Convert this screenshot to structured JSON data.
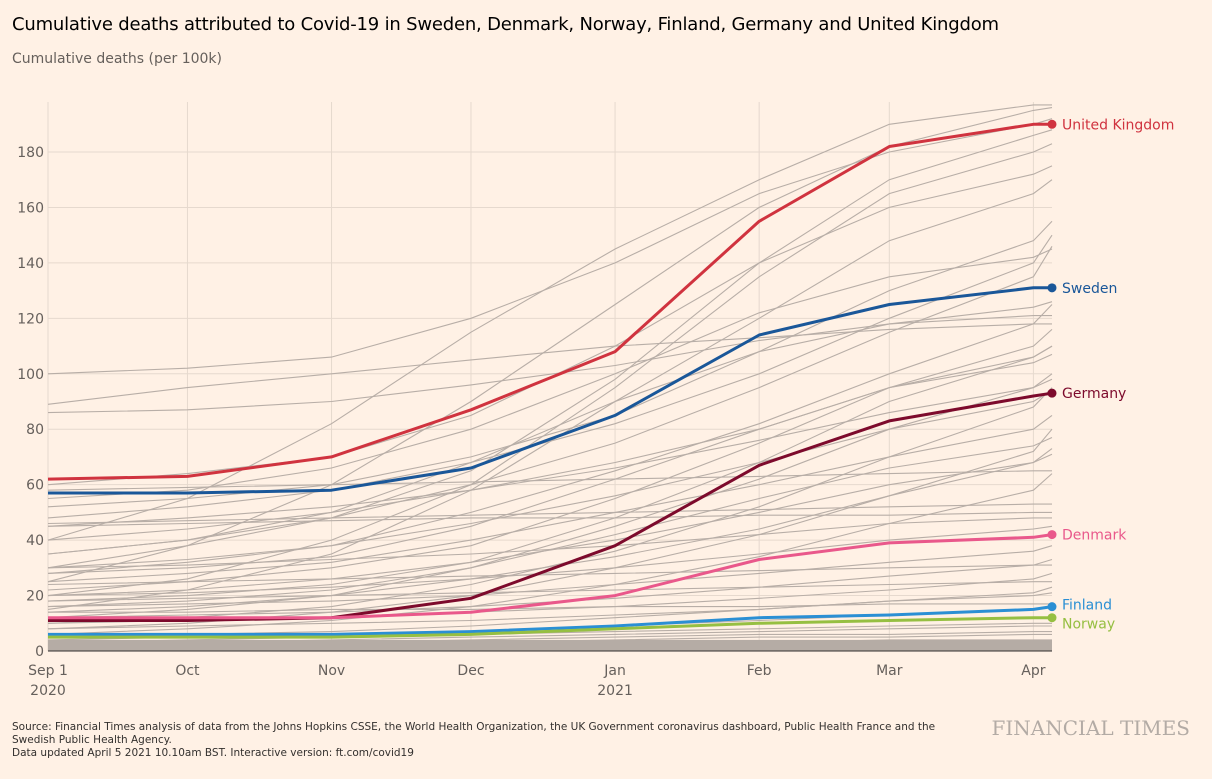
{
  "header": {
    "title": "Cumulative deaths attributed to Covid-19 in Sweden, Denmark, Norway, Finland, Germany and United Kingdom",
    "subtitle": "Cumulative deaths (per 100k)"
  },
  "footer": {
    "source_line1": "Source: Financial Times analysis of data from the Johns Hopkins CSSE, the World Health Organization, the UK Government coronavirus dashboard, Public Health France and the",
    "source_line2": "Swedish Public Health Agency.",
    "updated": "Data updated April 5 2021 10.10am BST. Interactive version: ft.com/covid19",
    "brand": "FINANCIAL TIMES"
  },
  "chart_data": {
    "type": "line",
    "title": "Cumulative deaths attributed to Covid-19 in Sweden, Denmark, Norway, Finland, Germany and United Kingdom",
    "ylabel": "Cumulative deaths (per 100k)",
    "xlabel": "",
    "ylim": [
      0,
      190
    ],
    "xlim_days": [
      0,
      216
    ],
    "grid": true,
    "legend": "direct labels at right end of lines",
    "y_ticks": [
      0,
      20,
      40,
      60,
      80,
      100,
      120,
      140,
      160,
      180
    ],
    "x_ticks": [
      {
        "day": 0,
        "label": "Sep 1",
        "sublabel": "2020"
      },
      {
        "day": 30,
        "label": "Oct",
        "sublabel": ""
      },
      {
        "day": 61,
        "label": "Nov",
        "sublabel": ""
      },
      {
        "day": 91,
        "label": "Dec",
        "sublabel": ""
      },
      {
        "day": 122,
        "label": "Jan",
        "sublabel": "2021"
      },
      {
        "day": 153,
        "label": "Feb",
        "sublabel": ""
      },
      {
        "day": 181,
        "label": "Mar",
        "sublabel": ""
      },
      {
        "day": 212,
        "label": "Apr",
        "sublabel": ""
      }
    ],
    "x_days": [
      0,
      30,
      61,
      91,
      122,
      153,
      181,
      212,
      216
    ],
    "series": [
      {
        "name": "United Kingdom",
        "color": "#d0333f",
        "values": [
          62,
          63,
          70,
          87,
          108,
          155,
          182,
          190,
          190
        ]
      },
      {
        "name": "Sweden",
        "color": "#1a5799",
        "values": [
          57,
          57,
          58,
          66,
          85,
          114,
          125,
          131,
          131
        ]
      },
      {
        "name": "Germany",
        "color": "#7d0a2c",
        "values": [
          11,
          11,
          12,
          19,
          38,
          67,
          83,
          92,
          93
        ]
      },
      {
        "name": "Denmark",
        "color": "#e9588b",
        "values": [
          12,
          12,
          12,
          14,
          20,
          33,
          39,
          41,
          42
        ]
      },
      {
        "name": "Finland",
        "color": "#2b8fd4",
        "values": [
          6,
          6,
          6,
          7,
          9,
          12,
          13,
          15,
          16
        ]
      },
      {
        "name": "Norway",
        "color": "#96bf42",
        "values": [
          5,
          5,
          5,
          6,
          8,
          10,
          11,
          12,
          12
        ]
      }
    ],
    "background_series_note": "Many other countries shown as thin grey context lines",
    "background_series": [
      [
        89,
        95,
        100,
        105,
        110,
        113,
        116,
        118,
        118
      ],
      [
        86,
        87,
        90,
        96,
        103,
        112,
        118,
        121,
        121
      ],
      [
        40,
        55,
        82,
        115,
        145,
        170,
        190,
        197,
        197
      ],
      [
        25,
        38,
        60,
        90,
        125,
        160,
        182,
        195,
        196
      ],
      [
        30,
        38,
        48,
        65,
        98,
        140,
        170,
        186,
        188
      ],
      [
        20,
        26,
        40,
        60,
        95,
        135,
        165,
        180,
        183
      ],
      [
        15,
        22,
        35,
        58,
        90,
        120,
        148,
        165,
        170
      ],
      [
        48,
        52,
        58,
        68,
        82,
        100,
        120,
        140,
        150
      ],
      [
        52,
        55,
        60,
        70,
        85,
        108,
        130,
        148,
        155
      ],
      [
        35,
        40,
        48,
        60,
        75,
        95,
        115,
        135,
        146
      ],
      [
        28,
        32,
        38,
        50,
        65,
        82,
        100,
        118,
        125
      ],
      [
        22,
        25,
        30,
        38,
        55,
        75,
        95,
        110,
        116
      ],
      [
        18,
        20,
        24,
        32,
        48,
        68,
        90,
        106,
        110
      ],
      [
        45,
        48,
        52,
        58,
        68,
        80,
        95,
        106,
        110
      ],
      [
        12,
        15,
        20,
        30,
        45,
        62,
        80,
        95,
        100
      ],
      [
        10,
        12,
        16,
        24,
        36,
        52,
        70,
        88,
        95
      ],
      [
        40,
        44,
        50,
        58,
        66,
        76,
        86,
        95,
        98
      ],
      [
        30,
        33,
        38,
        46,
        56,
        68,
        80,
        90,
        94
      ],
      [
        25,
        28,
        32,
        40,
        50,
        60,
        70,
        80,
        85
      ],
      [
        8,
        10,
        14,
        20,
        30,
        42,
        56,
        72,
        80
      ],
      [
        14,
        16,
        20,
        26,
        34,
        44,
        56,
        68,
        73
      ],
      [
        20,
        22,
        26,
        32,
        40,
        50,
        60,
        68,
        71
      ],
      [
        6,
        8,
        11,
        16,
        24,
        34,
        46,
        58,
        64
      ],
      [
        46,
        47,
        48,
        49,
        50,
        51,
        52,
        53,
        53
      ],
      [
        58,
        59,
        60,
        61,
        62,
        63,
        64,
        65,
        65
      ],
      [
        45,
        46,
        47,
        48,
        48,
        49,
        49,
        50,
        50
      ],
      [
        30,
        31,
        33,
        35,
        38,
        42,
        46,
        48,
        48
      ],
      [
        20,
        21,
        23,
        26,
        30,
        35,
        40,
        44,
        45
      ],
      [
        16,
        17,
        18,
        20,
        24,
        28,
        32,
        36,
        38
      ],
      [
        12,
        13,
        14,
        16,
        19,
        23,
        27,
        31,
        33
      ],
      [
        24,
        25,
        26,
        27,
        28,
        29,
        30,
        31,
        31
      ],
      [
        18,
        19,
        20,
        21,
        22,
        23,
        24,
        25,
        25
      ],
      [
        10,
        11,
        12,
        14,
        16,
        19,
        22,
        26,
        28
      ],
      [
        8,
        9,
        10,
        11,
        13,
        15,
        18,
        21,
        23
      ],
      [
        5,
        6,
        7,
        9,
        12,
        15,
        18,
        20,
        21
      ],
      [
        14,
        14,
        15,
        15,
        16,
        16,
        17,
        17,
        17
      ],
      [
        4,
        5,
        6,
        7,
        9,
        11,
        13,
        15,
        16
      ],
      [
        3,
        4,
        5,
        6,
        7,
        8,
        9,
        10,
        10
      ],
      [
        2,
        3,
        4,
        5,
        6,
        7,
        8,
        9,
        9
      ],
      [
        2,
        2,
        3,
        4,
        5,
        6,
        6,
        7,
        7
      ],
      [
        1,
        2,
        2,
        3,
        4,
        5,
        5,
        6,
        6
      ],
      [
        1,
        1,
        2,
        2,
        3,
        3,
        4,
        4,
        4
      ],
      [
        100,
        102,
        106,
        120,
        140,
        165,
        180,
        190,
        192
      ],
      [
        60,
        64,
        70,
        85,
        110,
        140,
        160,
        172,
        175
      ],
      [
        55,
        58,
        66,
        80,
        100,
        122,
        135,
        142,
        145
      ],
      [
        35,
        40,
        50,
        68,
        90,
        108,
        118,
        124,
        126
      ],
      [
        28,
        30,
        34,
        45,
        62,
        80,
        95,
        104,
        107
      ],
      [
        16,
        18,
        22,
        30,
        42,
        55,
        66,
        74,
        77
      ]
    ]
  }
}
